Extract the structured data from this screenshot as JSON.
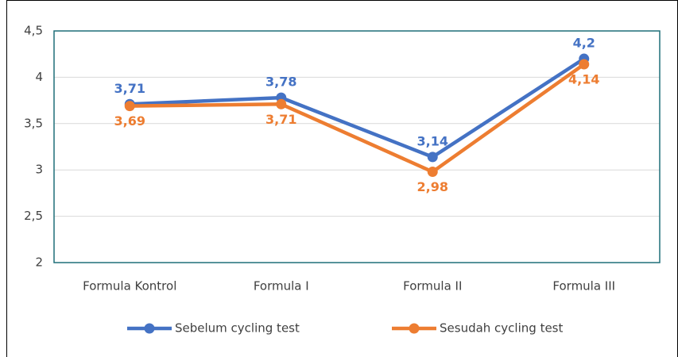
{
  "chart_data": {
    "type": "line",
    "categories": [
      "Formula Kontrol",
      "Formula I",
      "Formula II",
      "Formula III"
    ],
    "series": [
      {
        "name": "Sebelum cycling test",
        "color": "#4472c4",
        "values": [
          3.71,
          3.78,
          3.14,
          4.2
        ],
        "value_labels": [
          "3,71",
          "3,78",
          "3,14",
          "4,2"
        ]
      },
      {
        "name": "Sesudah cycling test",
        "color": "#ed7d31",
        "values": [
          3.69,
          3.71,
          2.98,
          4.14
        ],
        "value_labels": [
          "3,69",
          "3,71",
          "2,98",
          "4,14"
        ]
      }
    ],
    "ylim": [
      2,
      4.5
    ],
    "yticks": [
      2,
      {
        "value": 2.5,
        "label": "2,5"
      },
      3,
      {
        "value": 3.5,
        "label": "3,5"
      },
      4,
      {
        "value": 4.5,
        "label": "4,5"
      }
    ],
    "grid": true,
    "legend": "bottom"
  }
}
